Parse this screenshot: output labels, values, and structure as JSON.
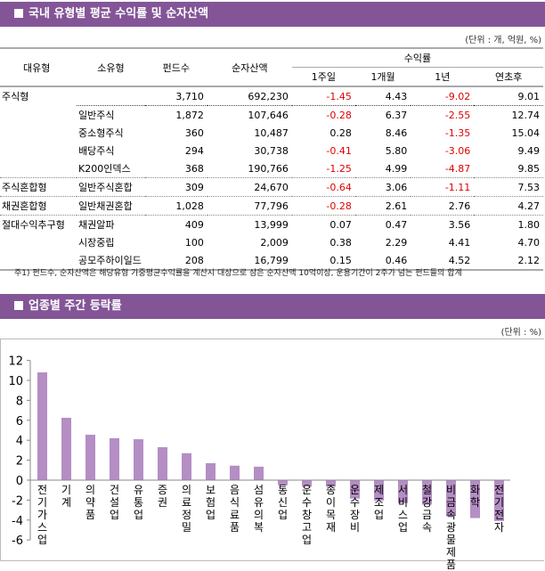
{
  "section1": {
    "title": "국내 유형별 평균 수익률 및 순자산액",
    "unit": "(단위 : 개, 억원, %)",
    "headers": {
      "major": "대유형",
      "minor": "소유형",
      "funds": "펀드수",
      "assets": "순자산액",
      "returns": "수익률",
      "w1": "1주일",
      "m1": "1개월",
      "y1": "1년",
      "ytd": "연초후"
    },
    "rows": [
      [
        "주식형",
        "",
        "3,710",
        "692,230",
        "-1.45",
        "4.43",
        "-9.02",
        "9.01"
      ],
      [
        "",
        "일반주식",
        "1,872",
        "107,646",
        "-0.28",
        "6.37",
        "-2.55",
        "12.74"
      ],
      [
        "",
        "중소형주식",
        "360",
        "10,487",
        "0.28",
        "8.46",
        "-1.35",
        "15.04"
      ],
      [
        "",
        "배당주식",
        "294",
        "30,738",
        "-0.41",
        "5.80",
        "-3.06",
        "9.49"
      ],
      [
        "",
        "K200인덱스",
        "368",
        "190,766",
        "-1.25",
        "4.99",
        "-4.87",
        "9.85"
      ],
      [
        "주식혼합형",
        "일반주식혼합",
        "309",
        "24,670",
        "-0.64",
        "3.06",
        "-1.11",
        "7.53"
      ],
      [
        "채권혼합형",
        "일반채권혼합",
        "1,028",
        "77,796",
        "-0.28",
        "2.61",
        "2.76",
        "4.27"
      ],
      [
        "절대수익추구형",
        "채권알파",
        "409",
        "13,999",
        "0.07",
        "0.47",
        "3.56",
        "1.80"
      ],
      [
        "",
        "시장중립",
        "100",
        "2,009",
        "0.38",
        "2.29",
        "4.41",
        "4.70"
      ],
      [
        "",
        "공모주하이일드",
        "208",
        "16,799",
        "0.15",
        "0.46",
        "4.52",
        "2.12"
      ]
    ],
    "footnote": "주1) 펀드수, 순자산액은 해당유형 가중평균수익률을 계산시 대상으로 삼은 순자산액 10억이상, 운용기간이 2주가 넘는 펀드들의 합계"
  },
  "section2": {
    "title": "업종별 주간 등락률",
    "unit": "(단위 : %)"
  },
  "colors": {
    "header": "#835597",
    "bar": "#b48ec4",
    "negative": "#e00000"
  },
  "chart_data": {
    "type": "bar",
    "ylim": [
      -6,
      12
    ],
    "yticks": [
      -6,
      -4,
      -2,
      0,
      2,
      4,
      6,
      8,
      10,
      12
    ],
    "grid": false,
    "categories": [
      "전기가스업",
      "기 계",
      "의약품",
      "건설업",
      "유통업",
      "증 권",
      "의료 정밀",
      "보험업",
      "음식료품",
      "섬유의복",
      "통신업",
      "운수 창고업",
      "종이 목재",
      "운수 장비",
      "제조업",
      "서비스업",
      "철강 금속",
      "비금속 광물제품",
      "화 학",
      "전기전자"
    ],
    "values": [
      10.8,
      6.25,
      4.55,
      4.2,
      4.1,
      3.3,
      2.7,
      1.7,
      1.45,
      1.35,
      -0.5,
      -0.65,
      -0.65,
      -1.85,
      -2.05,
      -2.3,
      -2.45,
      -3.6,
      -3.8,
      -4.1
    ]
  }
}
